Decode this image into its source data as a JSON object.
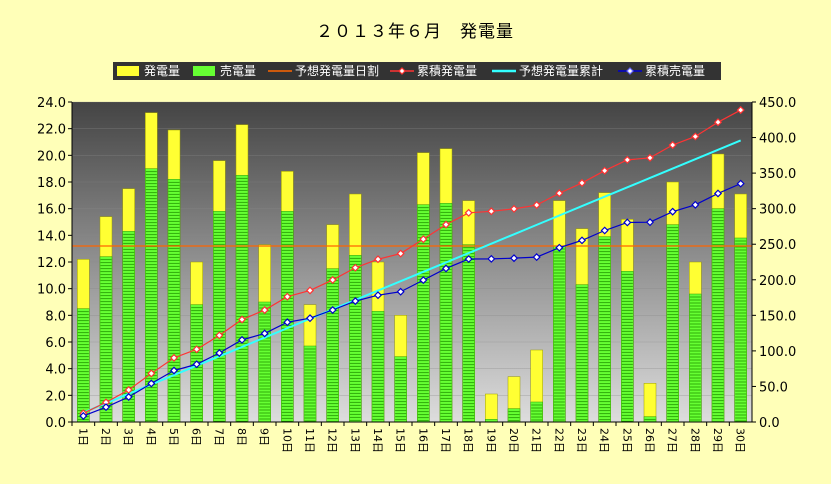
{
  "chart_data": {
    "type": "bar",
    "title": "２０１３年６月　発電量",
    "categories": [
      "1日",
      "2日",
      "3日",
      "4日",
      "5日",
      "6日",
      "7日",
      "8日",
      "9日",
      "10日",
      "11日",
      "12日",
      "13日",
      "14日",
      "15日",
      "16日",
      "17日",
      "18日",
      "19日",
      "20日",
      "21日",
      "22日",
      "23日",
      "24日",
      "25日",
      "26日",
      "27日",
      "28日",
      "29日",
      "30日"
    ],
    "series": [
      {
        "name": "発電量",
        "kind": "bar",
        "axis": "left",
        "color": "#ffff33",
        "values": [
          12.2,
          15.4,
          17.5,
          23.2,
          21.9,
          12.0,
          19.6,
          22.3,
          13.3,
          18.8,
          8.8,
          14.8,
          17.1,
          12.0,
          8.0,
          20.2,
          20.5,
          16.6,
          2.1,
          3.4,
          5.4,
          16.6,
          14.5,
          17.2,
          15.2,
          2.9,
          18.0,
          12.0,
          20.1,
          17.1
        ]
      },
      {
        "name": "売電量",
        "kind": "bar",
        "axis": "left",
        "color": "#66ff33",
        "values": [
          8.5,
          12.4,
          14.3,
          19.0,
          18.2,
          8.8,
          15.8,
          18.5,
          9.0,
          15.8,
          5.7,
          11.5,
          12.5,
          8.3,
          4.9,
          16.3,
          16.4,
          13.3,
          0.2,
          1.0,
          1.5,
          13.2,
          10.3,
          13.9,
          11.3,
          0.4,
          14.8,
          9.6,
          16.0,
          13.8
        ]
      },
      {
        "name": "予想発電量日割",
        "kind": "line",
        "axis": "left",
        "color": "#ff6600",
        "values": [
          13.2,
          13.2,
          13.2,
          13.2,
          13.2,
          13.2,
          13.2,
          13.2,
          13.2,
          13.2,
          13.2,
          13.2,
          13.2,
          13.2,
          13.2,
          13.2,
          13.2,
          13.2,
          13.2,
          13.2,
          13.2,
          13.2,
          13.2,
          13.2,
          13.2,
          13.2,
          13.2,
          13.2,
          13.2,
          13.2
        ]
      },
      {
        "name": "累積発電量",
        "kind": "line-marker",
        "axis": "right",
        "color": "#ff3333",
        "values": [
          12.2,
          27.6,
          45.1,
          68.3,
          90.2,
          102.2,
          121.8,
          144.1,
          157.4,
          176.2,
          185.0,
          199.8,
          216.9,
          228.9,
          236.9,
          257.1,
          277.6,
          294.2,
          296.3,
          299.7,
          305.1,
          321.7,
          336.2,
          353.4,
          368.6,
          371.5,
          389.5,
          401.5,
          421.6,
          438.7
        ]
      },
      {
        "name": "予想発電量累計",
        "kind": "line",
        "axis": "right",
        "color": "#33ffff",
        "values": [
          13.2,
          26.4,
          39.6,
          52.8,
          66.0,
          79.2,
          92.4,
          105.6,
          118.8,
          132.0,
          145.2,
          158.4,
          171.6,
          184.8,
          198.0,
          211.2,
          224.4,
          237.6,
          250.8,
          264.0,
          277.2,
          290.4,
          303.6,
          316.8,
          330.0,
          343.2,
          356.4,
          369.6,
          382.8,
          396.0
        ]
      },
      {
        "name": "累積売電量",
        "kind": "line-marker",
        "axis": "right",
        "color": "#0000cc",
        "values": [
          8.5,
          20.9,
          35.2,
          54.2,
          72.4,
          81.2,
          97.0,
          115.5,
          124.5,
          140.3,
          146.0,
          157.5,
          170.0,
          178.3,
          183.2,
          199.5,
          215.9,
          229.2,
          229.4,
          230.4,
          231.9,
          245.1,
          255.4,
          269.3,
          280.6,
          281.0,
          295.8,
          305.4,
          321.4,
          335.2
        ]
      }
    ],
    "ylim": [
      0,
      24
    ],
    "y_ticks": [
      "0.0",
      "2.0",
      "4.0",
      "6.0",
      "8.0",
      "10.0",
      "12.0",
      "14.0",
      "16.0",
      "18.0",
      "20.0",
      "22.0",
      "24.0"
    ],
    "y2lim": [
      0,
      450
    ],
    "y2_ticks": [
      "0.0",
      "50.0",
      "100.0",
      "150.0",
      "200.0",
      "250.0",
      "300.0",
      "350.0",
      "400.0",
      "450.0"
    ],
    "legend_position": "top",
    "grid": true,
    "background": "#ffffb8",
    "plot_gradient": [
      "#444444",
      "#dddddd"
    ]
  }
}
